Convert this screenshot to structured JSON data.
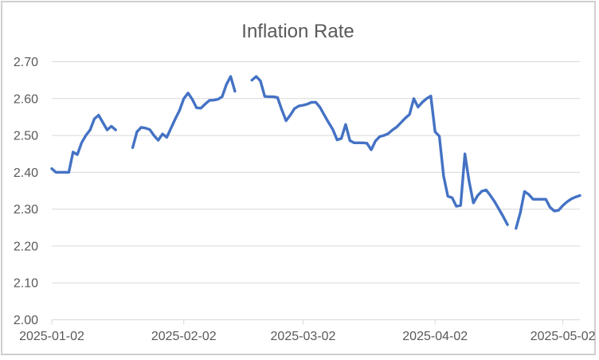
{
  "chart_title": "Inflation Rate",
  "colors": {
    "line": "#4472C4",
    "gridline": "#D9D9D9",
    "axis_line": "#D9D9D9",
    "axis_text": "#595959",
    "title_text": "#595959",
    "chart_border": "#D0CECE",
    "background": "#FFFFFF"
  },
  "chart_data": {
    "type": "line",
    "title": "Inflation Rate",
    "xlabel": "",
    "ylabel": "",
    "legend": "none",
    "grid": "horizontal",
    "ylim": [
      2.0,
      2.7
    ],
    "y_tick_step": 0.1,
    "y_tick_labels": [
      "2.70",
      "2.60",
      "2.50",
      "2.40",
      "2.30",
      "2.20",
      "2.10",
      "2.00"
    ],
    "x_tick_labels": [
      "2025-01-02",
      "2025-02-02",
      "2025-03-02",
      "2025-04-02",
      "2025-05-02"
    ],
    "x_tick_indices": [
      0,
      31,
      59,
      90,
      120
    ],
    "x": [
      "2025-01-02",
      "2025-01-03",
      "2025-01-04",
      "2025-01-05",
      "2025-01-06",
      "2025-01-07",
      "2025-01-08",
      "2025-01-09",
      "2025-01-10",
      "2025-01-11",
      "2025-01-12",
      "2025-01-13",
      "2025-01-14",
      "2025-01-15",
      "2025-01-16",
      "2025-01-17",
      "2025-01-18",
      "2025-01-19",
      "2025-01-20",
      "2025-01-21",
      "2025-01-22",
      "2025-01-23",
      "2025-01-24",
      "2025-01-25",
      "2025-01-26",
      "2025-01-27",
      "2025-01-28",
      "2025-01-29",
      "2025-01-30",
      "2025-01-31",
      "2025-02-01",
      "2025-02-02",
      "2025-02-03",
      "2025-02-04",
      "2025-02-05",
      "2025-02-06",
      "2025-02-07",
      "2025-02-08",
      "2025-02-09",
      "2025-02-10",
      "2025-02-11",
      "2025-02-12",
      "2025-02-13",
      "2025-02-14",
      "2025-02-15",
      "2025-02-16",
      "2025-02-17",
      "2025-02-18",
      "2025-02-19",
      "2025-02-20",
      "2025-02-21",
      "2025-02-22",
      "2025-02-23",
      "2025-02-24",
      "2025-02-25",
      "2025-02-26",
      "2025-02-27",
      "2025-02-28",
      "2025-03-01",
      "2025-03-02",
      "2025-03-03",
      "2025-03-04",
      "2025-03-05",
      "2025-03-06",
      "2025-03-07",
      "2025-03-08",
      "2025-03-09",
      "2025-03-10",
      "2025-03-11",
      "2025-03-12",
      "2025-03-13",
      "2025-03-14",
      "2025-03-15",
      "2025-03-16",
      "2025-03-17",
      "2025-03-18",
      "2025-03-19",
      "2025-03-20",
      "2025-03-21",
      "2025-03-22",
      "2025-03-23",
      "2025-03-24",
      "2025-03-25",
      "2025-03-26",
      "2025-03-27",
      "2025-03-28",
      "2025-03-29",
      "2025-03-30",
      "2025-03-31",
      "2025-04-01",
      "2025-04-02",
      "2025-04-03",
      "2025-04-04",
      "2025-04-05",
      "2025-04-06",
      "2025-04-07",
      "2025-04-08",
      "2025-04-09",
      "2025-04-10",
      "2025-04-11",
      "2025-04-12",
      "2025-04-13",
      "2025-04-14",
      "2025-04-15",
      "2025-04-16",
      "2025-04-17",
      "2025-04-18",
      "2025-04-19",
      "2025-04-20",
      "2025-04-21",
      "2025-04-22",
      "2025-04-23",
      "2025-04-24",
      "2025-04-25",
      "2025-04-26",
      "2025-04-27",
      "2025-04-28",
      "2025-04-29",
      "2025-04-30",
      "2025-05-01",
      "2025-05-02",
      "2025-05-03",
      "2025-05-04",
      "2025-05-05",
      "2025-05-06"
    ],
    "values": [
      2.41,
      2.4,
      2.4,
      2.4,
      2.4,
      2.455,
      2.448,
      2.48,
      2.5,
      2.515,
      2.545,
      2.555,
      2.535,
      2.515,
      2.525,
      2.515,
      null,
      null,
      null,
      2.467,
      2.51,
      2.522,
      2.52,
      2.516,
      2.5,
      2.487,
      2.504,
      2.495,
      2.52,
      2.545,
      2.568,
      2.6,
      2.615,
      2.598,
      2.575,
      2.574,
      2.585,
      2.595,
      2.596,
      2.598,
      2.605,
      2.638,
      2.66,
      2.62,
      null,
      null,
      null,
      2.65,
      2.66,
      2.648,
      2.606,
      2.605,
      2.605,
      2.603,
      2.57,
      2.54,
      2.555,
      2.573,
      2.58,
      2.582,
      2.585,
      2.59,
      2.59,
      2.576,
      2.555,
      2.535,
      2.516,
      2.488,
      2.492,
      2.53,
      2.486,
      2.48,
      2.48,
      2.48,
      2.479,
      2.461,
      2.485,
      2.497,
      2.5,
      2.505,
      2.515,
      2.523,
      2.535,
      2.547,
      2.557,
      2.6,
      2.577,
      2.59,
      2.6,
      2.607,
      2.51,
      2.498,
      2.39,
      2.335,
      2.331,
      2.308,
      2.31,
      2.45,
      2.375,
      2.317,
      2.337,
      2.349,
      2.352,
      2.337,
      2.32,
      2.3,
      2.28,
      2.258,
      null,
      2.248,
      2.29,
      2.348,
      2.34,
      2.327,
      2.327,
      2.327,
      2.327,
      2.305,
      2.295,
      2.297,
      2.31,
      2.32,
      2.328,
      2.333,
      2.337
    ]
  }
}
